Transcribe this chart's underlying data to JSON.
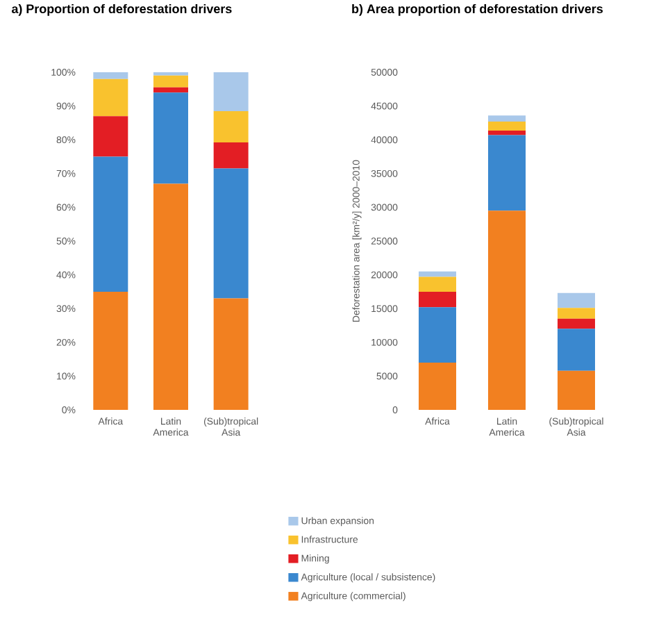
{
  "chart_data": [
    {
      "type": "bar",
      "stacked": true,
      "title": "a) Proportion of deforestation drivers",
      "categories": [
        "Africa",
        "Latin America",
        "(Sub)tropical Asia"
      ],
      "ylim": [
        0,
        100
      ],
      "yticks": [
        {
          "value": 0,
          "label": "0%"
        },
        {
          "value": 10,
          "label": "10%"
        },
        {
          "value": 20,
          "label": "20%"
        },
        {
          "value": 30,
          "label": "30%"
        },
        {
          "value": 40,
          "label": "40%"
        },
        {
          "value": 50,
          "label": "50%"
        },
        {
          "value": 60,
          "label": "60%"
        },
        {
          "value": 70,
          "label": "70%"
        },
        {
          "value": 80,
          "label": "80%"
        },
        {
          "value": 90,
          "label": "90%"
        },
        {
          "value": 100,
          "label": "100%"
        }
      ],
      "series": [
        {
          "color": "#f28020",
          "values": [
            35,
            67,
            33
          ]
        },
        {
          "color": "#3a88cf",
          "values": [
            40,
            27,
            38.5
          ]
        },
        {
          "color": "#e31e24",
          "values": [
            12,
            1.5,
            7.7
          ]
        },
        {
          "color": "#f9c22e",
          "values": [
            11,
            3.5,
            9.3
          ]
        },
        {
          "color": "#a9c8ea",
          "values": [
            2,
            1,
            11.5
          ]
        }
      ]
    },
    {
      "type": "bar",
      "stacked": true,
      "title": "b) Area proportion of deforestation drivers",
      "ylabel": "Deforestation area [km²/y] 2000–2010",
      "legend": "bottom",
      "categories": [
        "Africa",
        "Latin America",
        "(Sub)tropical Asia"
      ],
      "ylim": [
        0,
        50000
      ],
      "yticks": [
        0,
        5000,
        10000,
        15000,
        20000,
        25000,
        30000,
        35000,
        40000,
        45000,
        50000
      ],
      "series": [
        {
          "name": "Agriculture (commercial)",
          "color": "#f28020",
          "values": [
            7000,
            29500,
            5800
          ]
        },
        {
          "name": "Agriculture (local / subsistence)",
          "color": "#3a88cf",
          "values": [
            8200,
            11200,
            6200
          ]
        },
        {
          "name": "Mining",
          "color": "#e31e24",
          "values": [
            2300,
            650,
            1500
          ]
        },
        {
          "name": "Infrastructure",
          "color": "#f9c22e",
          "values": [
            2200,
            1350,
            1600
          ]
        },
        {
          "name": "Urban expansion",
          "color": "#a9c8ea",
          "values": [
            800,
            900,
            2200
          ]
        }
      ]
    }
  ]
}
